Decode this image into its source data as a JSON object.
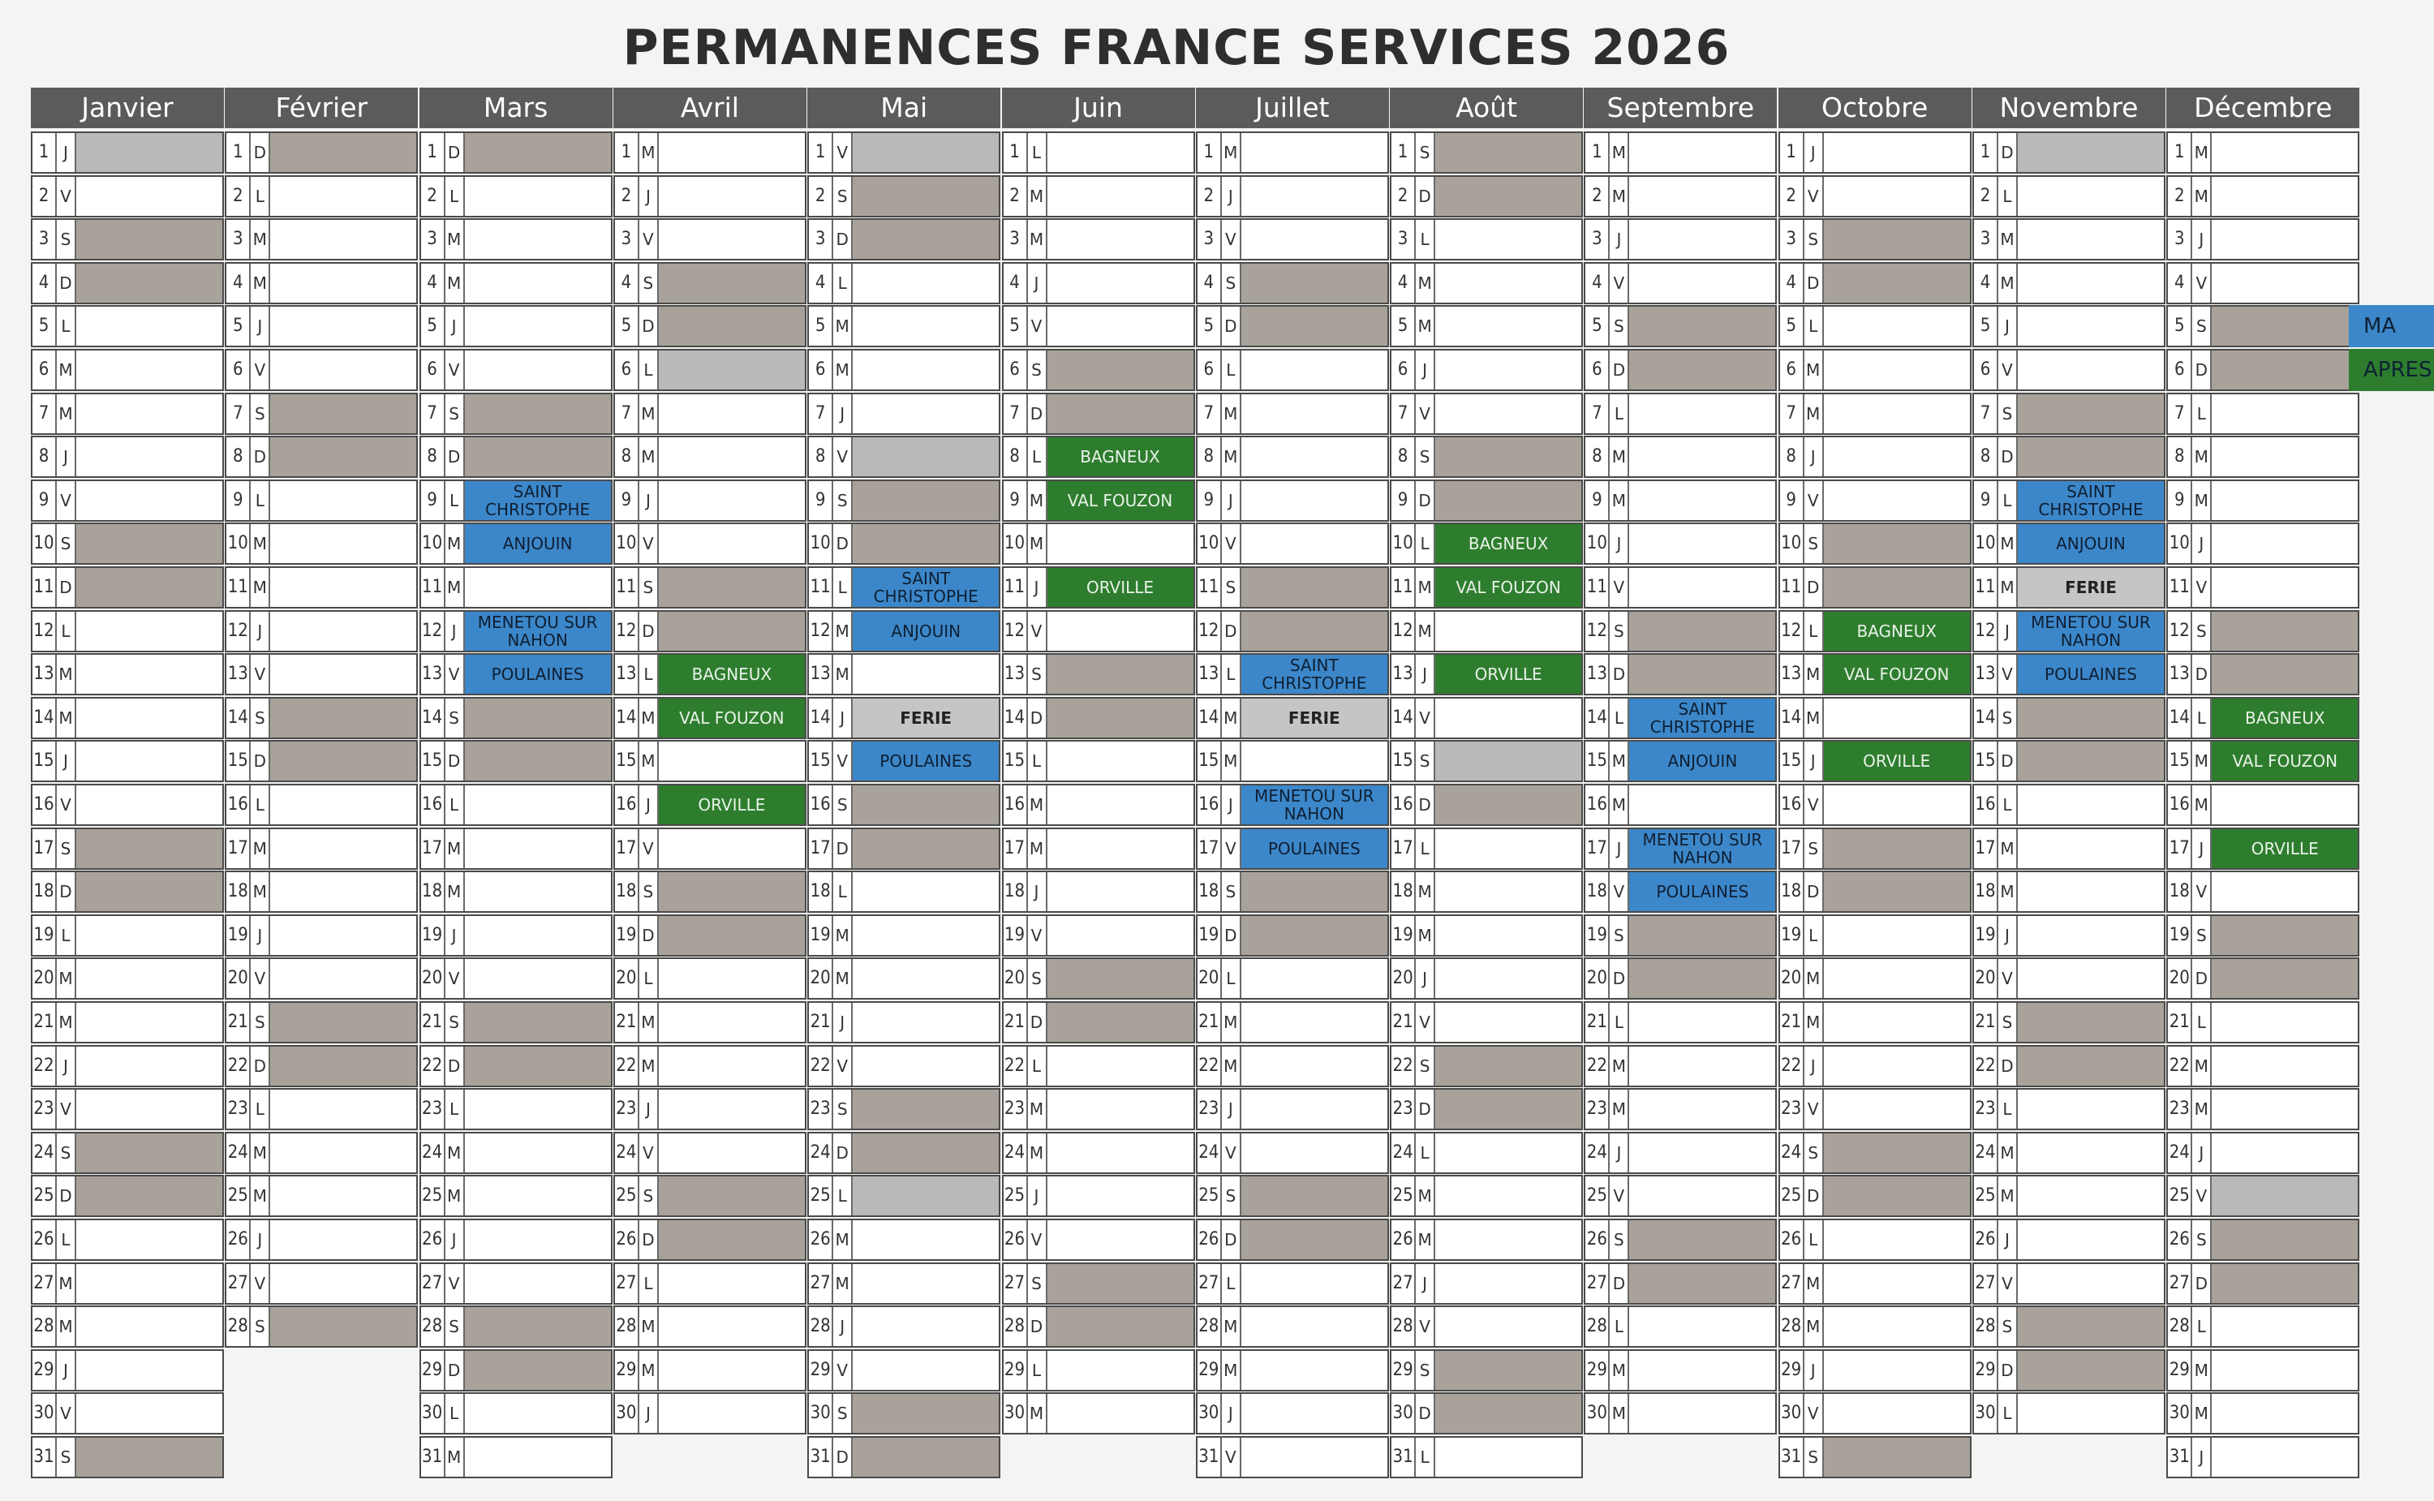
{
  "title": "PERMANENCES FRANCE SERVICES 2026",
  "year": 2026,
  "months": [
    "Janvier",
    "Février",
    "Mars",
    "Avril",
    "Mai",
    "Juin",
    "Juillet",
    "Août",
    "Septembre",
    "Octobre",
    "Novembre",
    "Décembre"
  ],
  "weekday_letters": [
    "L",
    "M",
    "M",
    "J",
    "V",
    "S",
    "D"
  ],
  "holiday_days": [
    "1-1",
    "4-6",
    "5-1",
    "5-8",
    "5-14",
    "5-25",
    "7-14",
    "8-15",
    "11-1",
    "11-11",
    "12-25"
  ],
  "events": [
    {
      "month": 3,
      "day": 9,
      "label": "SAINT CHRISTOPHE",
      "color": "blue"
    },
    {
      "month": 3,
      "day": 10,
      "label": "ANJOUIN",
      "color": "blue"
    },
    {
      "month": 3,
      "day": 12,
      "label": "MENETOU SUR NAHON",
      "color": "blue"
    },
    {
      "month": 3,
      "day": 13,
      "label": "POULAINES",
      "color": "blue"
    },
    {
      "month": 4,
      "day": 13,
      "label": "BAGNEUX",
      "color": "green"
    },
    {
      "month": 4,
      "day": 14,
      "label": "VAL FOUZON",
      "color": "green"
    },
    {
      "month": 4,
      "day": 16,
      "label": "ORVILLE",
      "color": "green"
    },
    {
      "month": 5,
      "day": 11,
      "label": "SAINT CHRISTOPHE",
      "color": "blue"
    },
    {
      "month": 5,
      "day": 12,
      "label": "ANJOUIN",
      "color": "blue"
    },
    {
      "month": 5,
      "day": 14,
      "label": "FERIE",
      "color": "ferie"
    },
    {
      "month": 5,
      "day": 15,
      "label": "POULAINES",
      "color": "blue"
    },
    {
      "month": 6,
      "day": 8,
      "label": "BAGNEUX",
      "color": "green"
    },
    {
      "month": 6,
      "day": 9,
      "label": "VAL FOUZON",
      "color": "green"
    },
    {
      "month": 6,
      "day": 11,
      "label": "ORVILLE",
      "color": "green"
    },
    {
      "month": 7,
      "day": 13,
      "label": "SAINT CHRISTOPHE",
      "color": "blue"
    },
    {
      "month": 7,
      "day": 14,
      "label": "FERIE",
      "color": "ferie"
    },
    {
      "month": 7,
      "day": 16,
      "label": "MENETOU SUR NAHON",
      "color": "blue"
    },
    {
      "month": 7,
      "day": 17,
      "label": "POULAINES",
      "color": "blue"
    },
    {
      "month": 8,
      "day": 10,
      "label": "BAGNEUX",
      "color": "green"
    },
    {
      "month": 8,
      "day": 11,
      "label": "VAL FOUZON",
      "color": "green"
    },
    {
      "month": 8,
      "day": 13,
      "label": "ORVILLE",
      "color": "green"
    },
    {
      "month": 9,
      "day": 14,
      "label": "SAINT CHRISTOPHE",
      "color": "blue"
    },
    {
      "month": 9,
      "day": 15,
      "label": "ANJOUIN",
      "color": "blue"
    },
    {
      "month": 9,
      "day": 17,
      "label": "MENETOU SUR NAHON",
      "color": "blue"
    },
    {
      "month": 9,
      "day": 18,
      "label": "POULAINES",
      "color": "blue"
    },
    {
      "month": 10,
      "day": 12,
      "label": "BAGNEUX",
      "color": "green"
    },
    {
      "month": 10,
      "day": 13,
      "label": "VAL FOUZON",
      "color": "green"
    },
    {
      "month": 10,
      "day": 15,
      "label": "ORVILLE",
      "color": "green"
    },
    {
      "month": 11,
      "day": 9,
      "label": "SAINT CHRISTOPHE",
      "color": "blue"
    },
    {
      "month": 11,
      "day": 10,
      "label": "ANJOUIN",
      "color": "blue"
    },
    {
      "month": 11,
      "day": 11,
      "label": "FERIE",
      "color": "ferie"
    },
    {
      "month": 11,
      "day": 12,
      "label": "MENETOU SUR NAHON",
      "color": "blue"
    },
    {
      "month": 11,
      "day": 13,
      "label": "POULAINES",
      "color": "blue"
    },
    {
      "month": 12,
      "day": 14,
      "label": "BAGNEUX",
      "color": "green"
    },
    {
      "month": 12,
      "day": 15,
      "label": "VAL FOUZON",
      "color": "green"
    },
    {
      "month": 12,
      "day": 17,
      "label": "ORVILLE",
      "color": "green"
    }
  ],
  "legend": [
    {
      "label": "MA",
      "color": "blue"
    },
    {
      "label": "APRES",
      "color": "green"
    }
  ],
  "colors": {
    "header": "#5b5b5b",
    "weekend": "#a8a29b",
    "holiday": "#b9b9bb",
    "blue": "#3c87c9",
    "green": "#2e7d2e",
    "ferie": "#c5c5c7"
  }
}
